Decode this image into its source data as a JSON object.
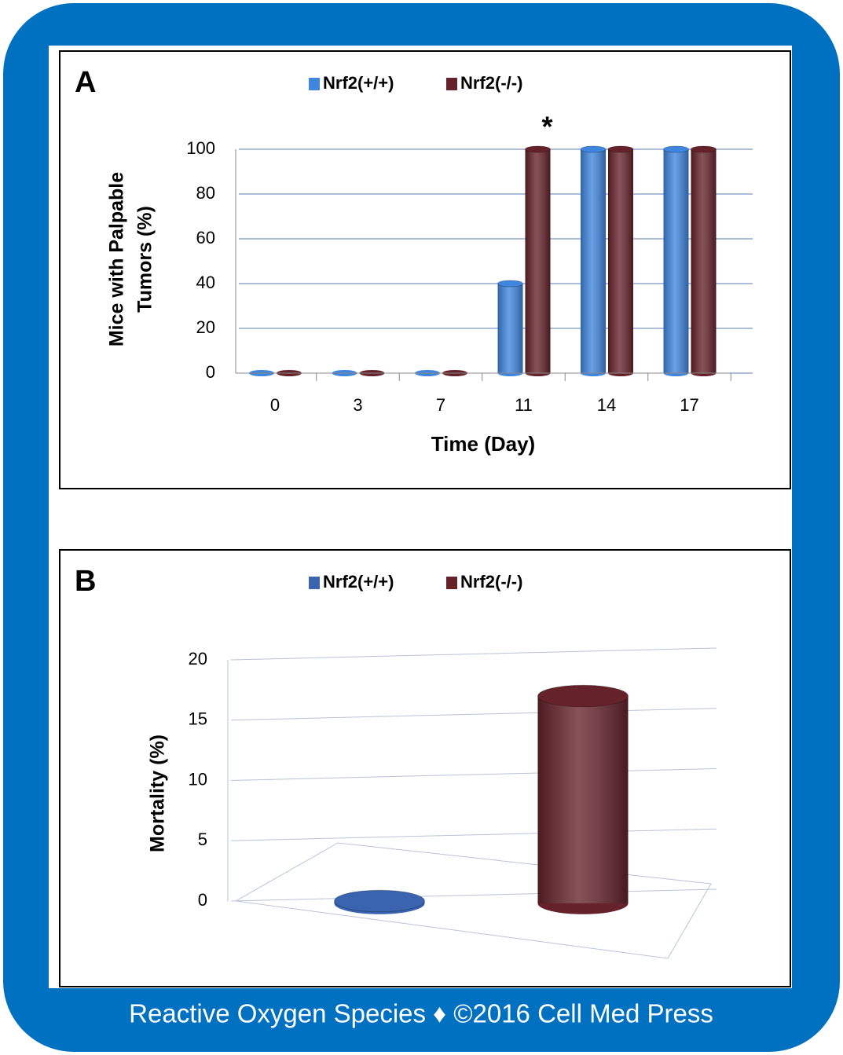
{
  "chart_data": [
    {
      "type": "bar",
      "label": "A",
      "categories": [
        "0",
        "3",
        "7",
        "11",
        "14",
        "17"
      ],
      "series": [
        {
          "name": "Nrf2(+/+)",
          "color": "#3f86e0",
          "values": [
            0,
            0,
            0,
            40,
            100,
            100
          ]
        },
        {
          "name": "Nrf2(-/-)",
          "color": "#65222a",
          "values": [
            0,
            0,
            0,
            100,
            100,
            100
          ]
        }
      ],
      "xlabel": "Time (Day)",
      "ylabel": [
        "Mice with Palpable",
        "Tumors (%)"
      ],
      "ylim": [
        0,
        100
      ],
      "yticks": [
        0,
        20,
        40,
        60,
        80,
        100
      ],
      "grid": true,
      "annotations": [
        {
          "text": "*",
          "x": "11"
        }
      ]
    },
    {
      "type": "bar",
      "label": "B",
      "categories": [
        null
      ],
      "series": [
        {
          "name": "Nrf2(+/+)",
          "color": "#3a64b0",
          "values": [
            0
          ]
        },
        {
          "name": "Nrf2(-/-)",
          "color": "#65222a",
          "values": [
            17
          ]
        }
      ],
      "ylabel": [
        "Mortality (%)"
      ],
      "ylim": [
        0,
        20
      ],
      "yticks": [
        0,
        5,
        10,
        15,
        20
      ],
      "grid": true
    }
  ],
  "footer": "Reactive Oxygen Species ♦ ©2016 Cell Med Press"
}
